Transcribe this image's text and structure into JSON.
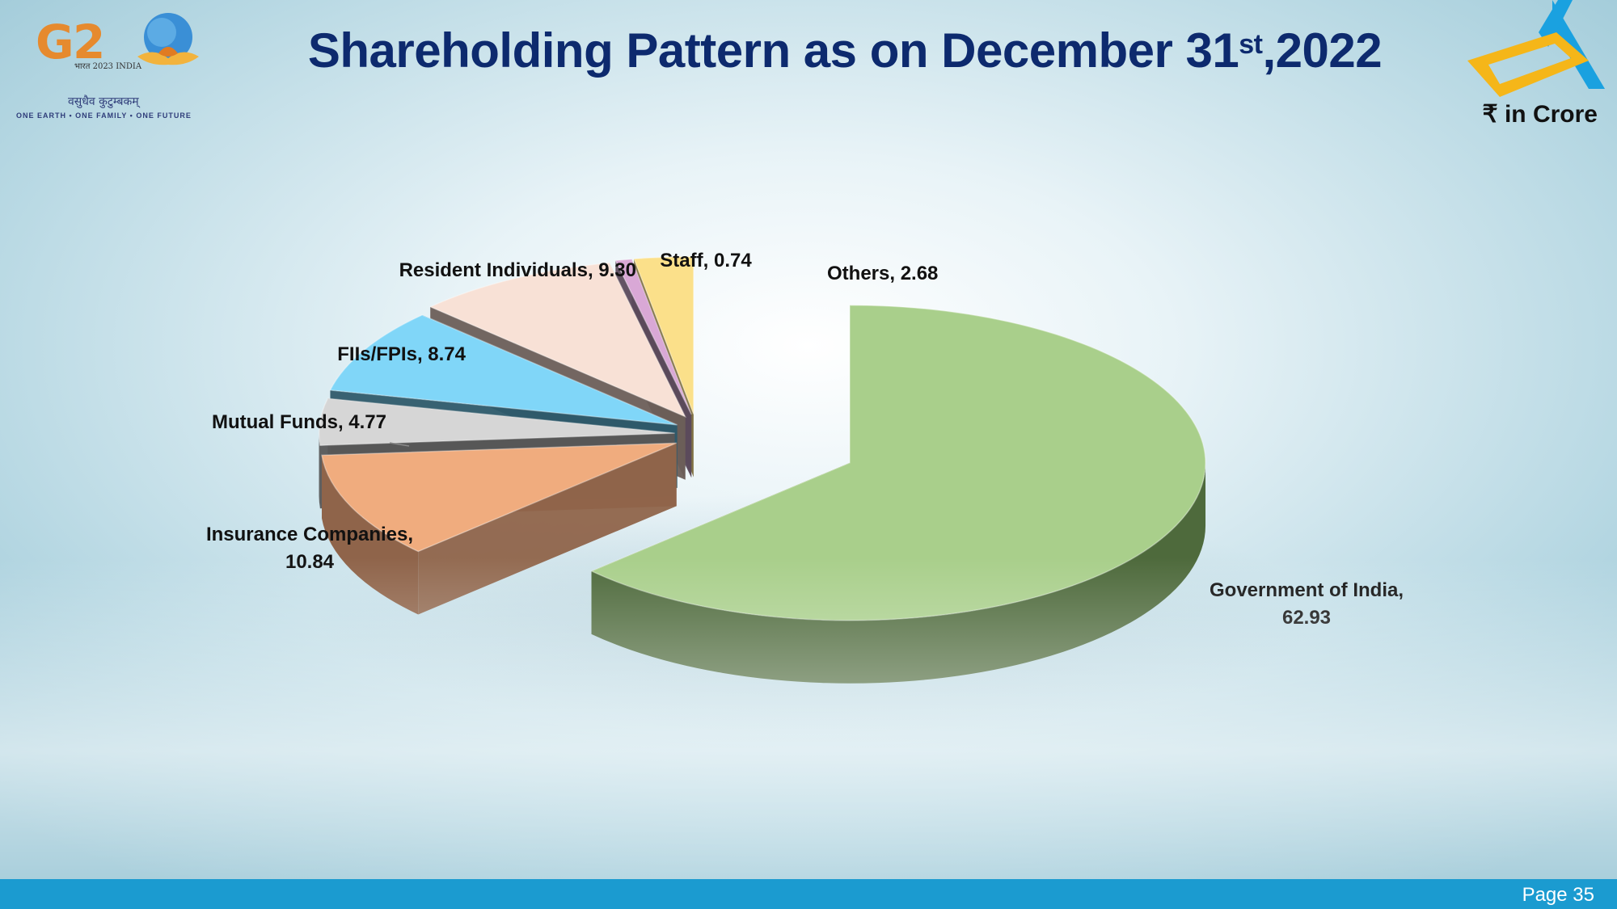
{
  "header": {
    "title_main": "Shareholding Pattern as on December 31",
    "title_sup": "st",
    "title_tail": ",2022",
    "unit": "₹ in Crore"
  },
  "logos": {
    "g20_text": "G20",
    "g20_year": "भारत 2023 INDIA",
    "g20_hindi": "वसुधैव कुटुम्बकम्",
    "g20_tagline": "ONE EARTH • ONE FAMILY • ONE FUTURE"
  },
  "chart_data": {
    "type": "pie",
    "categories": [
      "Government of India",
      "Insurance Companies",
      "Mutual Funds",
      "FIIs/FPIs",
      "Resident Individuals",
      "Staff",
      "Others"
    ],
    "values": [
      62.93,
      10.84,
      4.77,
      8.74,
      9.3,
      0.74,
      2.68
    ],
    "labels": {
      "gov_a": "Government of India,",
      "gov_b": "62.93",
      "ins_a": "Insurance Companies,",
      "ins_b": "10.84",
      "mf": "Mutual Funds, 4.77",
      "fii": "FIIs/FPIs, 8.74",
      "res": "Resident Individuals, 9.30",
      "staff": "Staff, 0.74",
      "oth": "Others, 2.68"
    },
    "colors": {
      "top": [
        "#a9cf8b",
        "#f0ac7e",
        "#d6d6d6",
        "#80d6f8",
        "#f8e1d6",
        "#d9a8d6",
        "#fbe08a"
      ],
      "side": [
        "#4e6a3c",
        "#8f644a",
        "#575757",
        "#2e5a6a",
        "#6b5e58",
        "#5b4a5c",
        "#7a6a3a"
      ]
    }
  },
  "footer": {
    "page": "Page 35"
  }
}
